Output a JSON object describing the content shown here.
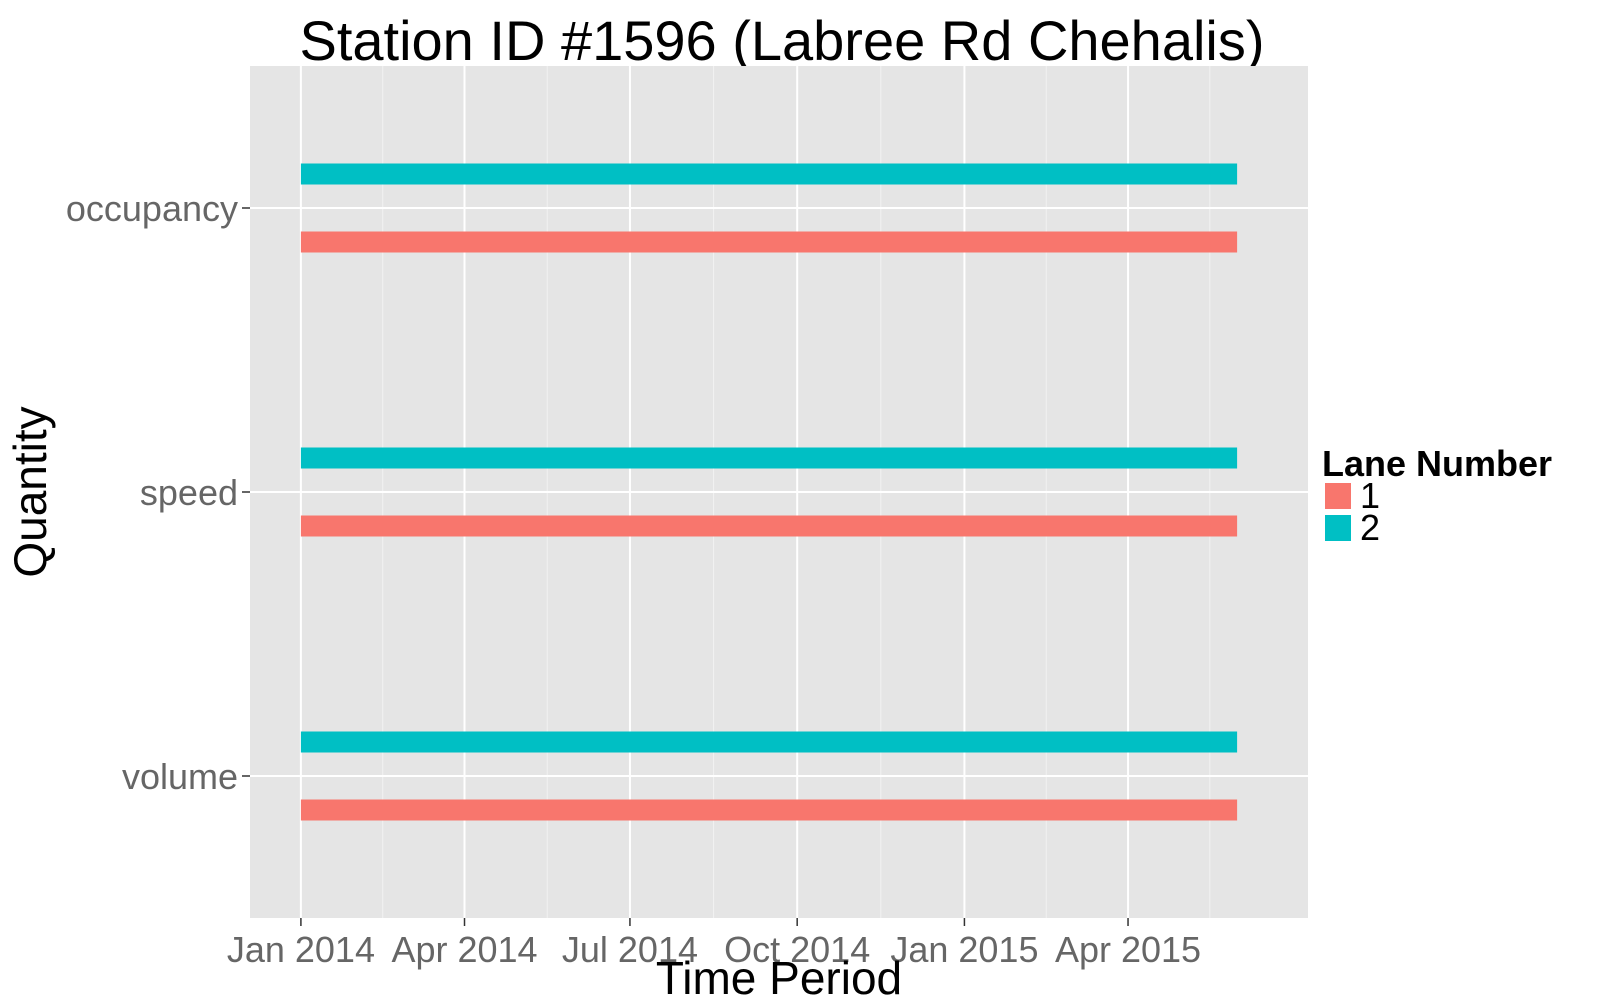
{
  "chart_data": {
    "type": "bar",
    "title": "Station ID #1596 (Labree Rd Chehalis)",
    "xlabel": "Time Period",
    "ylabel": "Quantity",
    "x_axis": "date",
    "xlim": [
      "2013-12-04",
      "2015-07-09"
    ],
    "x_ticks": [
      {
        "date": "2014-01-01",
        "label": "Jan 2014"
      },
      {
        "date": "2014-04-01",
        "label": "Apr 2014"
      },
      {
        "date": "2014-07-01",
        "label": "Jul 2014"
      },
      {
        "date": "2014-10-01",
        "label": "Oct 2014"
      },
      {
        "date": "2015-01-01",
        "label": "Jan 2015"
      },
      {
        "date": "2015-04-01",
        "label": "Apr 2015"
      }
    ],
    "categories": [
      "volume",
      "speed",
      "occupancy"
    ],
    "legend": {
      "title": "Lane Number",
      "position": "right"
    },
    "grid": true,
    "series": [
      {
        "name": "1",
        "color": "#F8766D",
        "segments": [
          {
            "category": "volume",
            "start": "2014-01-01",
            "end": "2015-05-31"
          },
          {
            "category": "speed",
            "start": "2014-01-01",
            "end": "2015-05-31"
          },
          {
            "category": "occupancy",
            "start": "2014-01-01",
            "end": "2015-05-31"
          }
        ]
      },
      {
        "name": "2",
        "color": "#00BFC4",
        "segments": [
          {
            "category": "volume",
            "start": "2014-01-01",
            "end": "2015-05-31"
          },
          {
            "category": "speed",
            "start": "2014-01-01",
            "end": "2015-05-31"
          },
          {
            "category": "occupancy",
            "start": "2014-01-01",
            "end": "2015-05-31"
          }
        ]
      }
    ]
  }
}
